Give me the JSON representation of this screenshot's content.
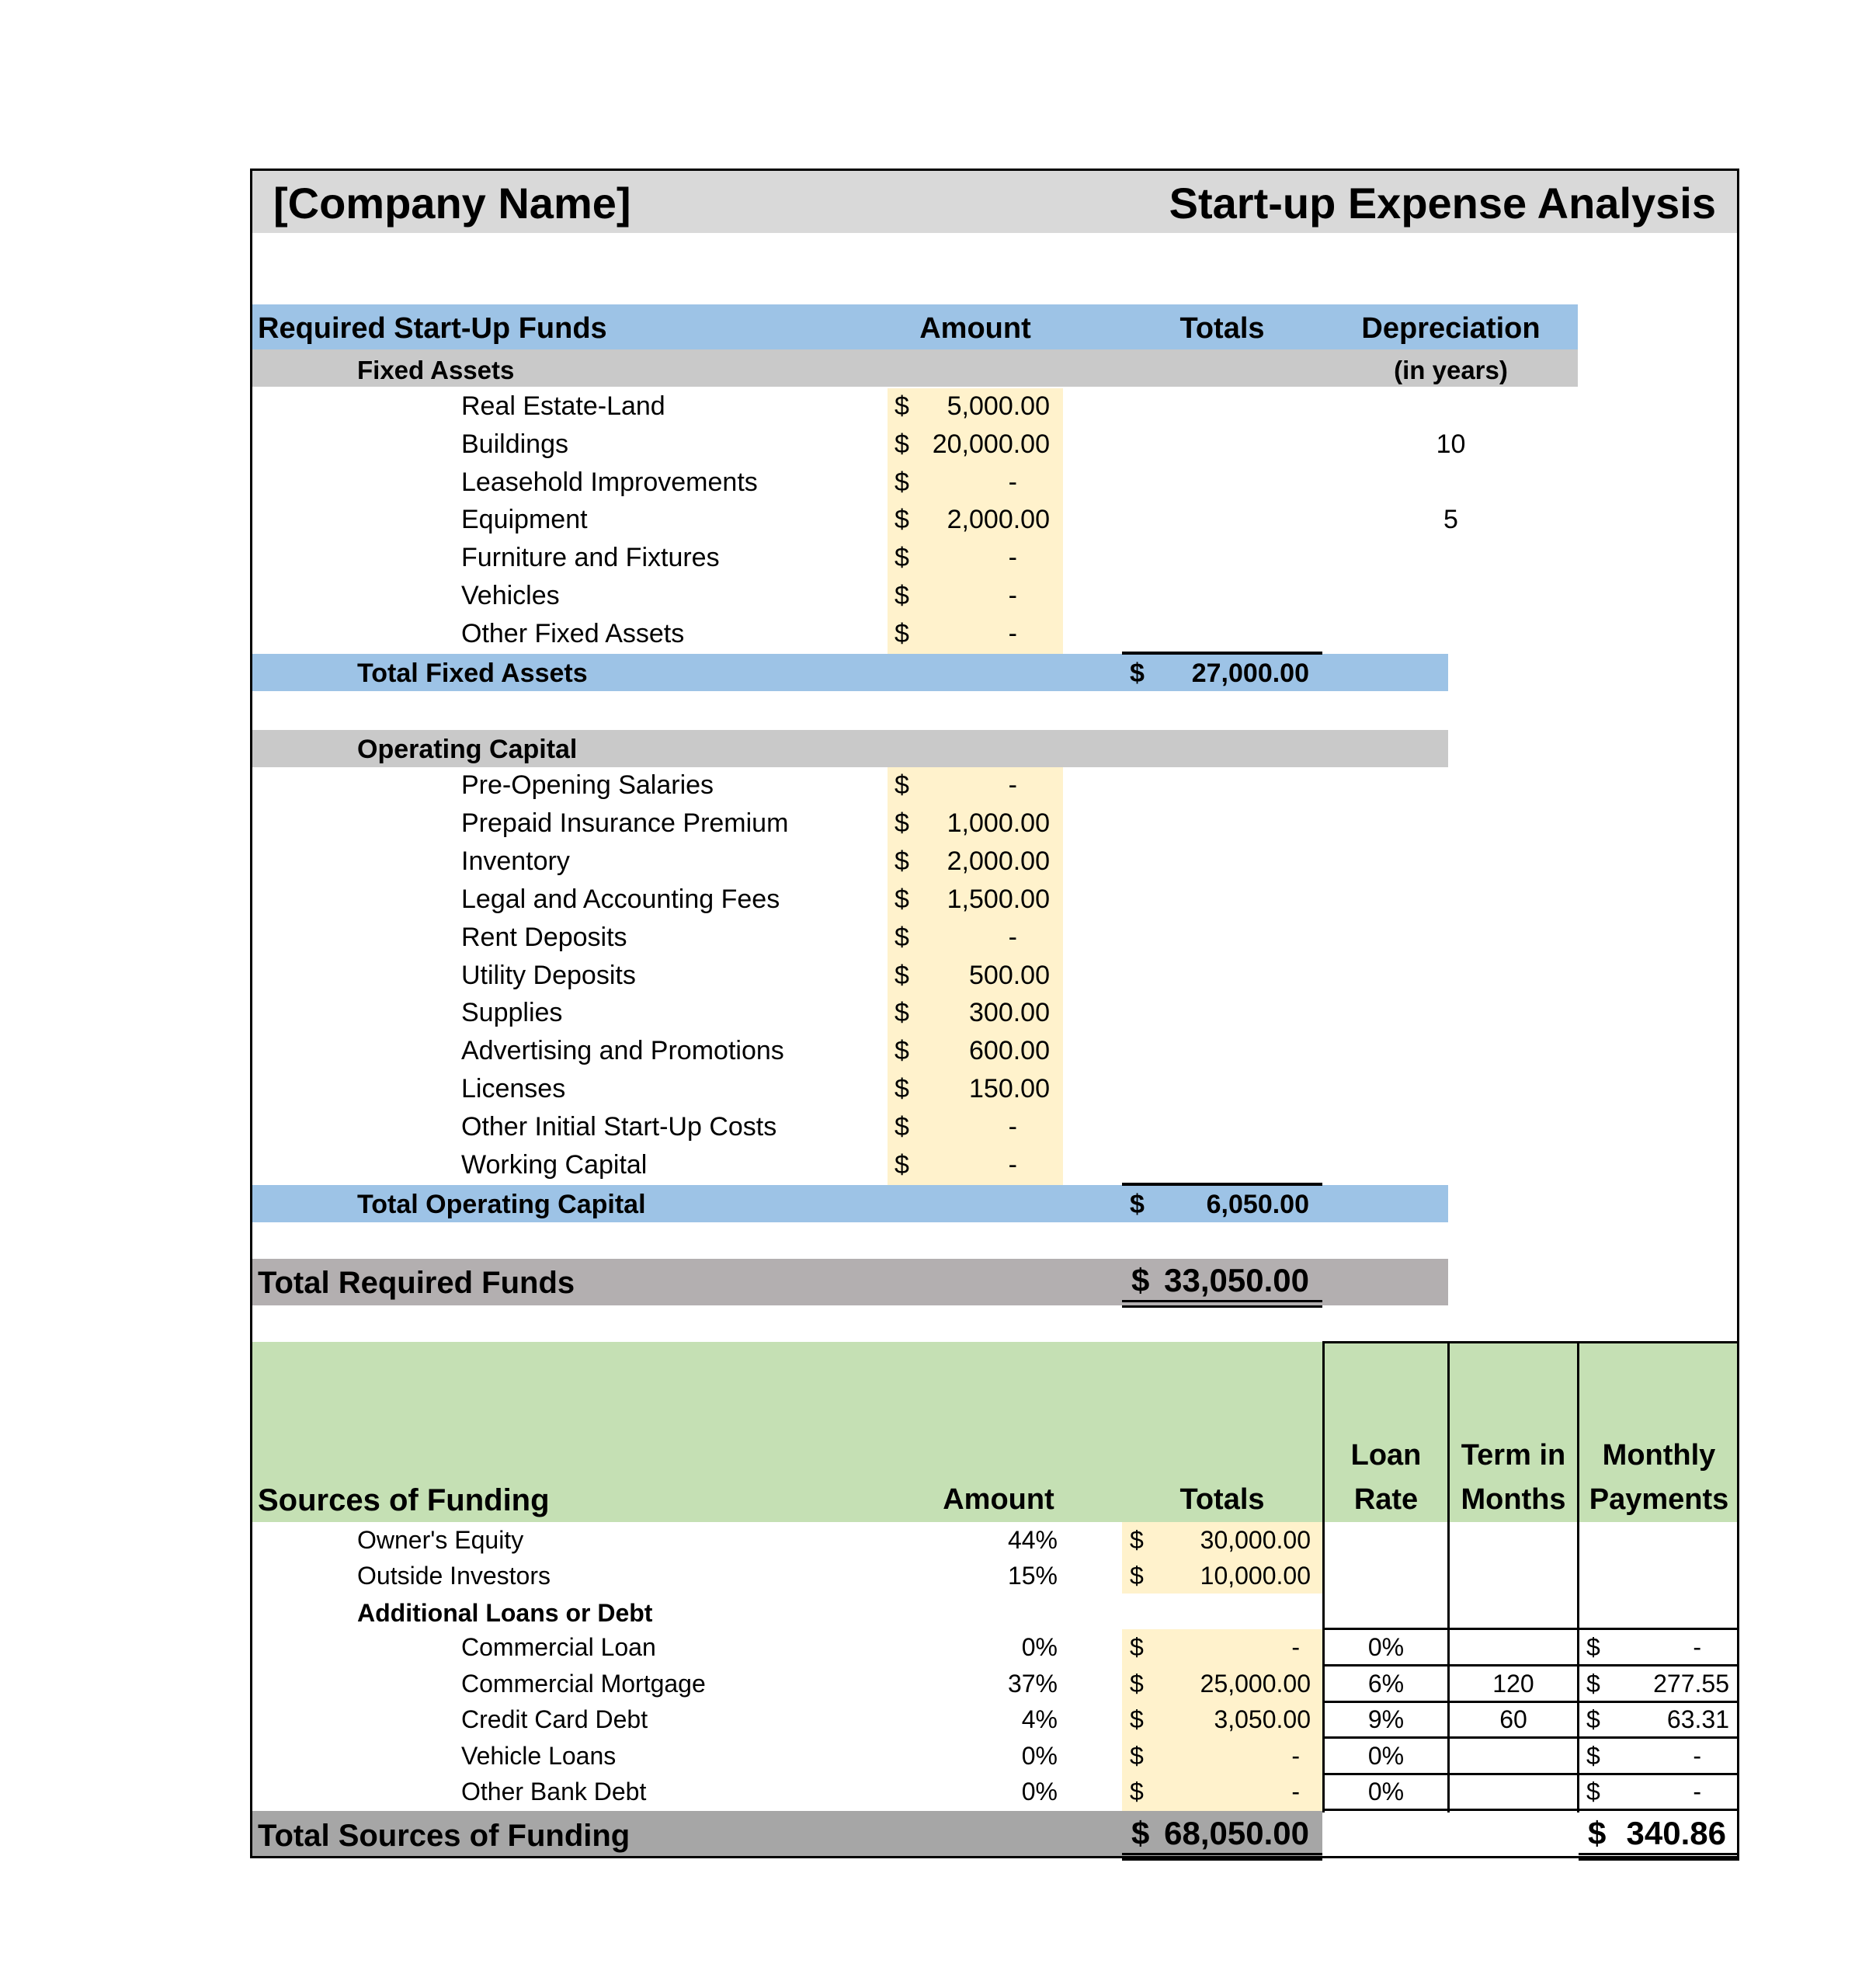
{
  "header": {
    "company_name": "[Company Name]",
    "report_title": "Start-up Expense Analysis"
  },
  "required": {
    "title": "Required Start-Up Funds",
    "col_amount": "Amount",
    "col_totals": "Totals",
    "col_depreciation": "Depreciation",
    "col_depreciation_sub": "(in years)",
    "fixed_assets": {
      "label": "Fixed Assets",
      "items": [
        {
          "label": "Real Estate-Land",
          "currency": "$",
          "amount": "5,000.00",
          "depreciation": ""
        },
        {
          "label": "Buildings",
          "currency": "$",
          "amount": "20,000.00",
          "depreciation": "10"
        },
        {
          "label": "Leasehold Improvements",
          "currency": "$",
          "amount": "-",
          "depreciation": ""
        },
        {
          "label": "Equipment",
          "currency": "$",
          "amount": "2,000.00",
          "depreciation": "5"
        },
        {
          "label": "Furniture and Fixtures",
          "currency": "$",
          "amount": "-",
          "depreciation": ""
        },
        {
          "label": "Vehicles",
          "currency": "$",
          "amount": "-",
          "depreciation": ""
        },
        {
          "label": "Other Fixed Assets",
          "currency": "$",
          "amount": "-",
          "depreciation": ""
        }
      ],
      "total_label": "Total Fixed Assets",
      "total_currency": "$",
      "total_value": "27,000.00"
    },
    "operating_capital": {
      "label": "Operating Capital",
      "items": [
        {
          "label": "Pre-Opening Salaries",
          "currency": "$",
          "amount": "-"
        },
        {
          "label": "Prepaid Insurance Premium",
          "currency": "$",
          "amount": "1,000.00"
        },
        {
          "label": "Inventory",
          "currency": "$",
          "amount": "2,000.00"
        },
        {
          "label": "Legal and Accounting Fees",
          "currency": "$",
          "amount": "1,500.00"
        },
        {
          "label": "Rent Deposits",
          "currency": "$",
          "amount": "-"
        },
        {
          "label": "Utility Deposits",
          "currency": "$",
          "amount": "500.00"
        },
        {
          "label": "Supplies",
          "currency": "$",
          "amount": "300.00"
        },
        {
          "label": "Advertising and Promotions",
          "currency": "$",
          "amount": "600.00"
        },
        {
          "label": "Licenses",
          "currency": "$",
          "amount": "150.00"
        },
        {
          "label": "Other Initial Start-Up Costs",
          "currency": "$",
          "amount": "-"
        },
        {
          "label": "Working Capital",
          "currency": "$",
          "amount": "-"
        }
      ],
      "total_label": "Total Operating Capital",
      "total_currency": "$",
      "total_value": "6,050.00"
    },
    "grand_total_label": "Total Required Funds",
    "grand_total_currency": "$",
    "grand_total_value": "33,050.00"
  },
  "funding": {
    "title": "Sources of Funding",
    "col_amount": "Amount",
    "col_totals": "Totals",
    "col_loan_rate": [
      "Loan",
      "Rate"
    ],
    "col_term": [
      "Term in",
      "Months"
    ],
    "col_monthly": [
      "Monthly",
      "Payments"
    ],
    "equity_rows": [
      {
        "label": "Owner's Equity",
        "percent": "44%",
        "currency": "$",
        "total": "30,000.00"
      },
      {
        "label": "Outside Investors",
        "percent": "15%",
        "currency": "$",
        "total": "10,000.00"
      }
    ],
    "loans_label": "Additional Loans or Debt",
    "loan_rows": [
      {
        "label": "Commercial Loan",
        "percent": "0%",
        "currency": "$",
        "total": "-",
        "rate": "0%",
        "term": "",
        "pay_currency": "$",
        "payment": "-"
      },
      {
        "label": "Commercial Mortgage",
        "percent": "37%",
        "currency": "$",
        "total": "25,000.00",
        "rate": "6%",
        "term": "120",
        "pay_currency": "$",
        "payment": "277.55"
      },
      {
        "label": "Credit Card Debt",
        "percent": "4%",
        "currency": "$",
        "total": "3,050.00",
        "rate": "9%",
        "term": "60",
        "pay_currency": "$",
        "payment": "63.31"
      },
      {
        "label": "Vehicle Loans",
        "percent": "0%",
        "currency": "$",
        "total": "-",
        "rate": "0%",
        "term": "",
        "pay_currency": "$",
        "payment": "-"
      },
      {
        "label": "Other Bank Debt",
        "percent": "0%",
        "currency": "$",
        "total": "-",
        "rate": "0%",
        "term": "",
        "pay_currency": "$",
        "payment": "-"
      }
    ],
    "total_label": "Total Sources of Funding",
    "total_currency": "$",
    "total_value": "68,050.00",
    "monthly_total_currency": "$",
    "monthly_total_value": "340.86"
  },
  "colors": {
    "header_gray": "#d9d9d9",
    "blue": "#9dc3e6",
    "section_gray": "#c9c9c9",
    "input_yellow": "#fff2cc",
    "total_gray": "#b3afb0",
    "green": "#c5e0b4",
    "total_funding_gray": "#a6a6a6"
  }
}
